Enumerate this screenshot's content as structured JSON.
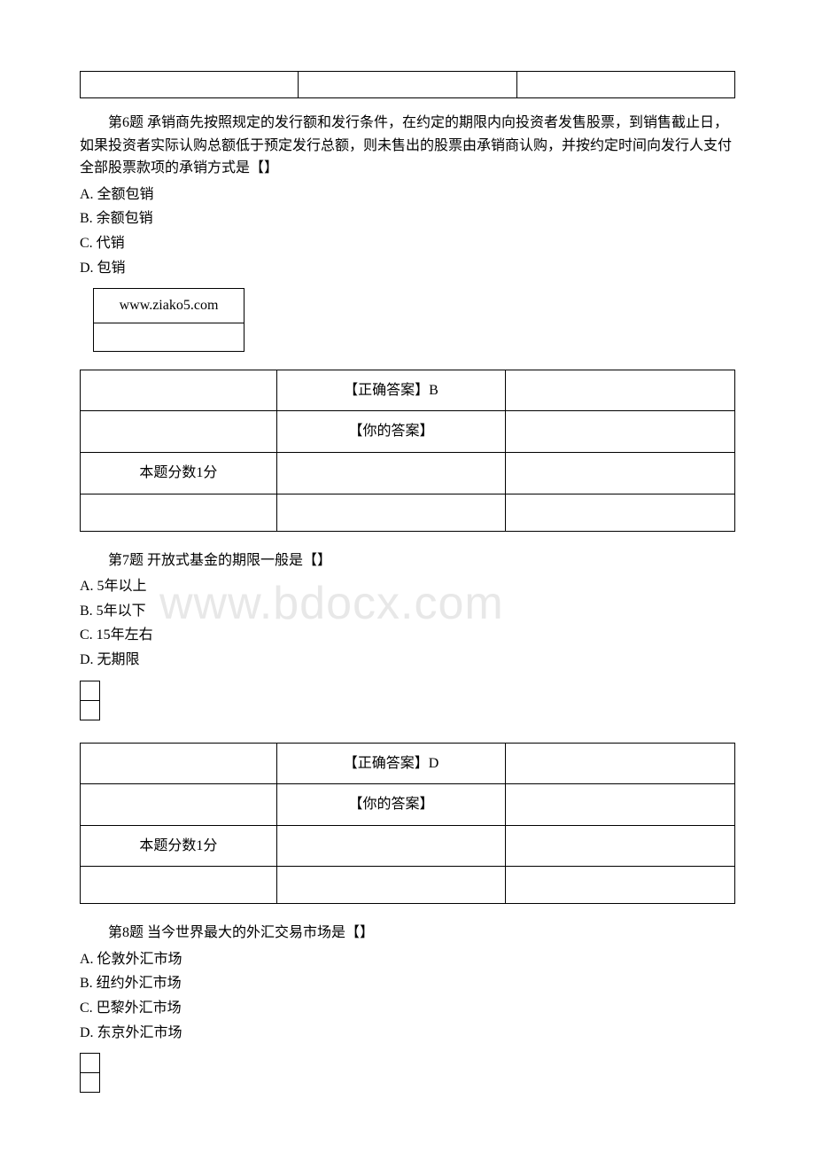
{
  "watermark": "www.bdocx.com",
  "q6": {
    "prefix": "第6题 ",
    "text": "承销商先按照规定的发行额和发行条件，在约定的期限内向投资者发售股票，到销售截止日，如果投资者实际认购总额低于预定发行总额，则未售出的股票由承销商认购，并按约定时间向发行人支付全部股票款项的承销方式是【】",
    "options": {
      "a": "A. 全额包销",
      "b": "B. 余额包销",
      "c": "C. 代销",
      "d": "D. 包销"
    },
    "url": "www.ziako5.com",
    "correct_label": "【正确答案】B",
    "your_label": "【你的答案】",
    "score": "本题分数1分"
  },
  "q7": {
    "prefix": "第7题 ",
    "text": "开放式基金的期限一般是【】",
    "options": {
      "a": "A. 5年以上",
      "b": "B. 5年以下",
      "c": "C. 15年左右",
      "d": "D. 无期限"
    },
    "correct_label": "【正确答案】D",
    "your_label": "【你的答案】",
    "score": "本题分数1分"
  },
  "q8": {
    "prefix": "第8题 ",
    "text": "当今世界最大的外汇交易市场是【】",
    "options": {
      "a": "A. 伦敦外汇市场",
      "b": "B. 纽约外汇市场",
      "c": "C. 巴黎外汇市场",
      "d": "D. 东京外汇市场"
    }
  }
}
